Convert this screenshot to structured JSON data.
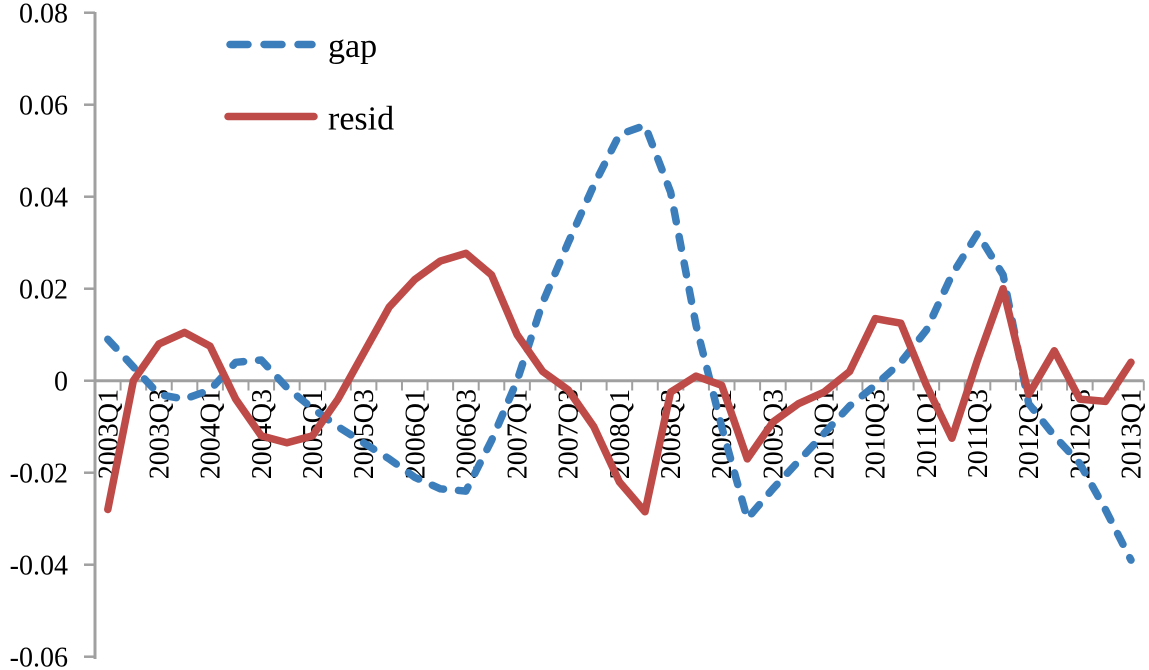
{
  "chart_data": {
    "type": "line",
    "title": "",
    "xlabel": "",
    "ylabel": "",
    "grid": false,
    "legend_position": "top-left-inside",
    "ylim": [
      -0.06,
      0.08
    ],
    "y_ticks": [
      0.08,
      0.06,
      0.04,
      0.02,
      0,
      -0.02,
      -0.04,
      -0.06
    ],
    "y_tick_labels": [
      "0.08",
      "0.06",
      "0.04",
      "0.02",
      "0",
      "-0.02",
      "-0.04",
      "-0.06"
    ],
    "x_categories": [
      "2003Q1",
      "2003Q2",
      "2003Q3",
      "2003Q4",
      "2004Q1",
      "2004Q2",
      "2004Q3",
      "2004Q4",
      "2005Q1",
      "2005Q2",
      "2005Q3",
      "2005Q4",
      "2006Q1",
      "2006Q2",
      "2006Q3",
      "2006Q4",
      "2007Q1",
      "2007Q2",
      "2007Q3",
      "2007Q4",
      "2008Q1",
      "2008Q2",
      "2008Q3",
      "2008Q4",
      "2009Q1",
      "2009Q2",
      "2009Q3",
      "2009Q4",
      "2010Q1",
      "2010Q2",
      "2010Q3",
      "2010Q4",
      "2011Q1",
      "2011Q2",
      "2011Q3",
      "2011Q4",
      "2012Q1",
      "2012Q2",
      "2012Q3",
      "2012Q4",
      "2013Q1"
    ],
    "x_tick_labels_shown": [
      "2003Q1",
      "2003Q3",
      "2004Q1",
      "2004Q3",
      "2005Q1",
      "2005Q3",
      "2006Q1",
      "2006Q3",
      "2007Q1",
      "2007Q3",
      "2008Q1",
      "2008Q3",
      "2009Q1",
      "2009Q3",
      "2010Q1",
      "2010Q3",
      "2011Q1",
      "2011Q3",
      "2012Q1",
      "2012Q3",
      "2013Q1"
    ],
    "series": [
      {
        "name": "gap",
        "style": "dashed",
        "color": "#3C7EBB",
        "values": [
          0.009,
          0.003,
          -0.003,
          -0.004,
          -0.002,
          0.004,
          0.0045,
          -0.0015,
          -0.006,
          -0.01,
          -0.0135,
          -0.017,
          -0.021,
          -0.0235,
          -0.024,
          -0.013,
          0.0,
          0.017,
          0.03,
          0.0425,
          0.0535,
          0.0555,
          0.041,
          0.012,
          -0.01,
          -0.03,
          -0.0235,
          -0.0175,
          -0.0115,
          -0.0055,
          -0.001,
          0.004,
          0.011,
          0.023,
          0.032,
          0.023,
          -0.005,
          -0.012,
          -0.018,
          -0.028,
          -0.039
        ]
      },
      {
        "name": "resid",
        "style": "solid",
        "color": "#BE4B48",
        "values": [
          -0.028,
          0.0,
          0.008,
          0.0105,
          0.0075,
          -0.004,
          -0.012,
          -0.0135,
          -0.012,
          -0.004,
          0.006,
          0.016,
          0.022,
          0.026,
          0.0277,
          0.023,
          0.01,
          0.002,
          -0.002,
          -0.01,
          -0.022,
          -0.0285,
          -0.0025,
          0.001,
          -0.001,
          -0.017,
          -0.009,
          -0.005,
          -0.0025,
          0.002,
          0.0135,
          0.0125,
          -0.001,
          -0.0125,
          0.0045,
          0.02,
          -0.003,
          0.0065,
          -0.004,
          -0.0045,
          0.004
        ]
      }
    ],
    "axis_color": "#A0A0A0"
  }
}
